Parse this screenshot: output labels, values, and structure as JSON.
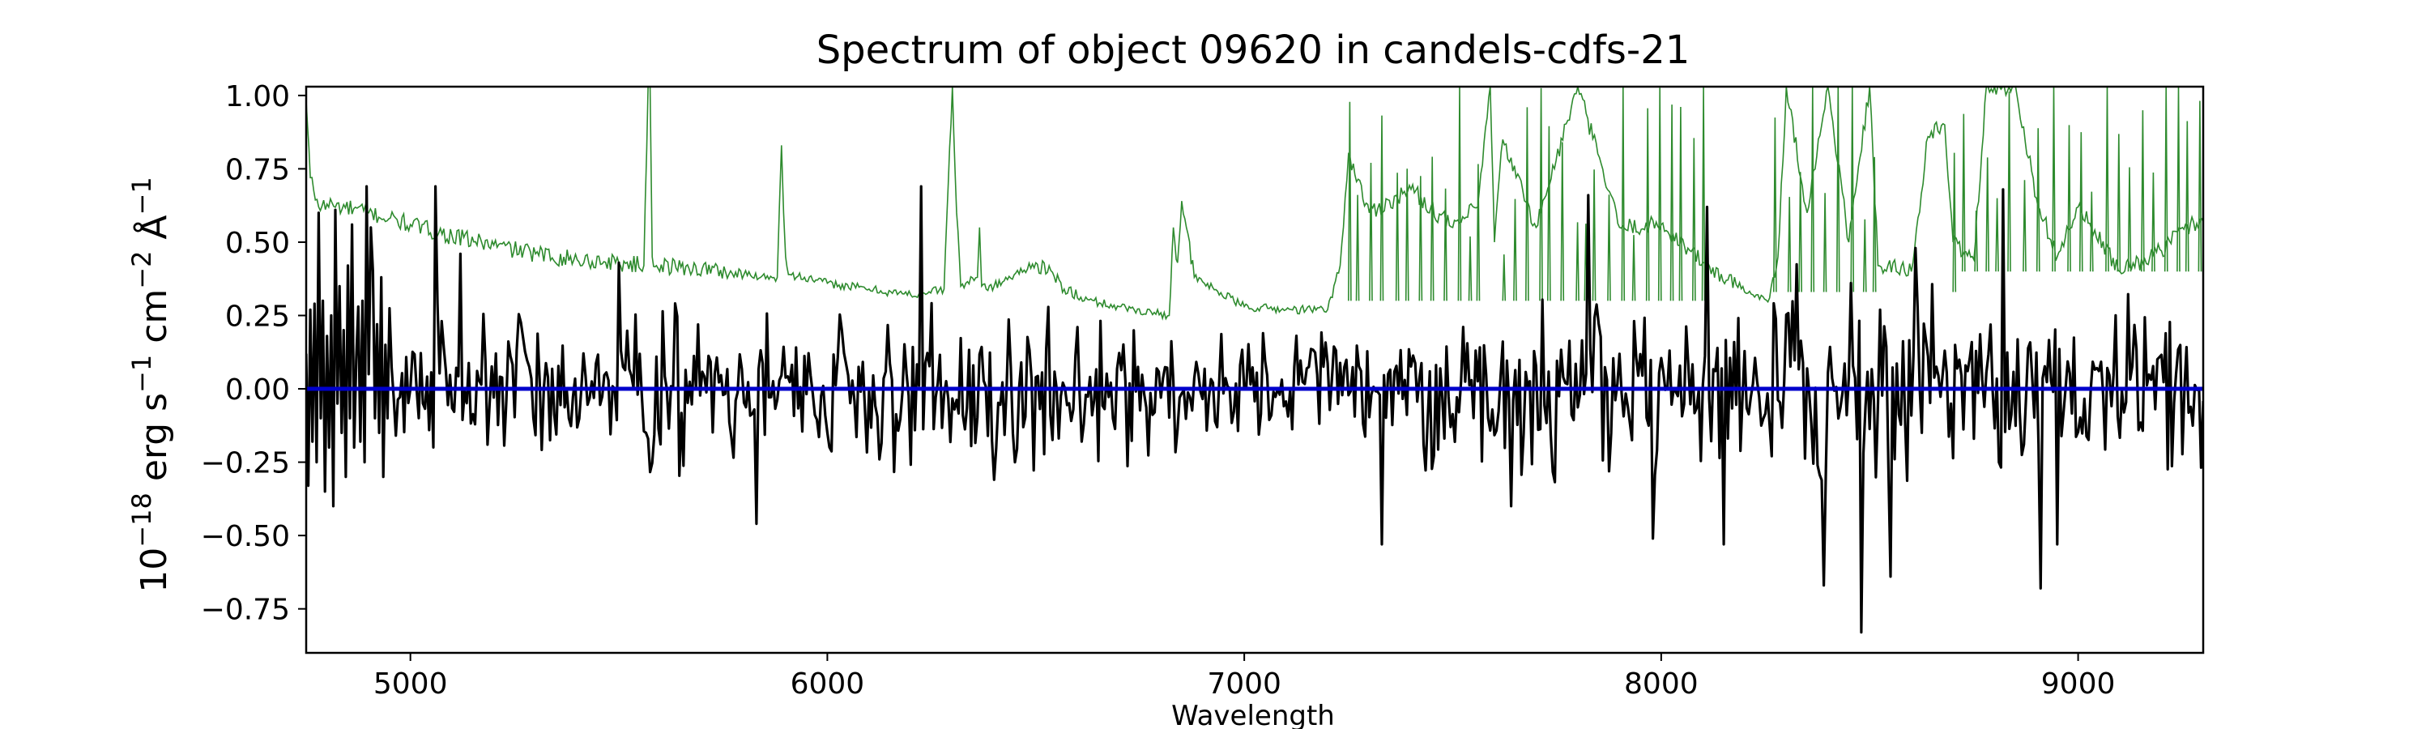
{
  "chart_data": {
    "type": "line",
    "title": "Spectrum of object 09620 in candels-cdfs-21",
    "xlabel": "Wavelength",
    "ylabel": {
      "text": "10−18 erg s−1 cm−2 Å−1",
      "parts": [
        {
          "text": "10",
          "sup": false
        },
        {
          "text": "−18",
          "sup": true
        },
        {
          "text": " erg s",
          "sup": false
        },
        {
          "text": "−1",
          "sup": true
        },
        {
          "text": " cm",
          "sup": false
        },
        {
          "text": "−2",
          "sup": true
        },
        {
          "text": " Å",
          "sup": false
        },
        {
          "text": "−1",
          "sup": true
        }
      ]
    },
    "xlim": [
      4750,
      9300
    ],
    "ylim": [
      -0.9,
      1.03
    ],
    "x_ticks": [
      5000,
      6000,
      7000,
      8000,
      9000
    ],
    "x_tick_labels": [
      "5000",
      "6000",
      "7000",
      "8000",
      "9000"
    ],
    "y_ticks": [
      -0.75,
      -0.5,
      -0.25,
      0.0,
      0.25,
      0.5,
      0.75,
      1.0
    ],
    "y_tick_labels": [
      "−0.75",
      "−0.50",
      "−0.25",
      "0.00",
      "0.25",
      "0.50",
      "0.75",
      "1.00"
    ],
    "grid": false,
    "series": [
      {
        "role": "flux",
        "color": "#000000",
        "x_start": 4750,
        "x_step": 5,
        "baseline": 0.0,
        "values": [
          0.12,
          -0.33,
          0.27,
          -0.18,
          0.29,
          -0.25,
          0.6,
          -0.1,
          0.3,
          -0.35,
          0.18,
          -0.2,
          0.25,
          -0.4,
          0.3,
          -0.05,
          0.35,
          -0.15,
          0.2,
          -0.3,
          0.42,
          -0.1,
          0.56,
          -0.2,
          0.1,
          0.28,
          -0.18,
          0.3,
          -0.25,
          0.69,
          0.05,
          -0.2,
          0.4,
          -0.1,
          0.22,
          -0.15,
          0.38,
          -0.3,
          0.15,
          -0.1
        ],
        "noise_seed": 9620,
        "noise_sigma": 0.17,
        "peaks": [
          {
            "x": 4820,
            "y": 0.61
          },
          {
            "x": 4905,
            "y": 0.55
          },
          {
            "x": 5060,
            "y": 0.69
          },
          {
            "x": 5120,
            "y": 0.46
          },
          {
            "x": 5500,
            "y": 0.43
          },
          {
            "x": 5830,
            "y": -0.46
          },
          {
            "x": 6225,
            "y": 0.69
          },
          {
            "x": 6400,
            "y": -0.31
          },
          {
            "x": 7330,
            "y": -0.53
          },
          {
            "x": 7640,
            "y": -0.4
          },
          {
            "x": 7825,
            "y": 0.66
          },
          {
            "x": 7980,
            "y": -0.51
          },
          {
            "x": 8110,
            "y": 0.62
          },
          {
            "x": 8150,
            "y": -0.53
          },
          {
            "x": 8390,
            "y": -0.67
          },
          {
            "x": 8480,
            "y": -0.83
          },
          {
            "x": 8550,
            "y": -0.64
          },
          {
            "x": 8610,
            "y": 0.48
          },
          {
            "x": 8820,
            "y": 0.68
          },
          {
            "x": 8910,
            "y": -0.68
          },
          {
            "x": 8950,
            "y": -0.53
          }
        ]
      },
      {
        "role": "error",
        "color": "#2e8b2e",
        "segments": [
          {
            "x": [
              4750,
              4760,
              4780,
              4800,
              4900,
              5000,
              5100,
              5200,
              5300,
              5400,
              5500,
              5560
            ],
            "y": [
              0.98,
              0.72,
              0.62,
              0.63,
              0.6,
              0.56,
              0.52,
              0.49,
              0.46,
              0.44,
              0.43,
              0.42
            ]
          },
          {
            "x": [
              5560,
              5570,
              5575,
              5580,
              5590
            ],
            "y": [
              0.42,
              1.03,
              1.03,
              0.45,
              0.42
            ]
          },
          {
            "x": [
              5590,
              5700,
              5800,
              5880
            ],
            "y": [
              0.42,
              0.41,
              0.39,
              0.38
            ]
          },
          {
            "x": [
              5880,
              5885,
              5890,
              5895,
              5900,
              5910
            ],
            "y": [
              0.38,
              0.62,
              0.83,
              0.6,
              0.45,
              0.39
            ]
          },
          {
            "x": [
              5910,
              6000,
              6100,
              6200,
              6280
            ],
            "y": [
              0.39,
              0.36,
              0.34,
              0.32,
              0.34
            ]
          },
          {
            "x": [
              6280,
              6290,
              6300,
              6310,
              6320
            ],
            "y": [
              0.34,
              0.7,
              1.03,
              0.6,
              0.35
            ]
          },
          {
            "x": [
              6320,
              6360,
              6365,
              6370,
              6400,
              6500,
              6600,
              6700,
              6820
            ],
            "y": [
              0.35,
              0.38,
              0.55,
              0.35,
              0.35,
              0.43,
              0.31,
              0.28,
              0.25
            ]
          },
          {
            "x": [
              6820,
              6830,
              6840,
              6850,
              6880,
              7000,
              7100,
              7200,
              7230
            ],
            "y": [
              0.25,
              0.55,
              0.43,
              0.64,
              0.38,
              0.28,
              0.27,
              0.27,
              0.42
            ]
          },
          {
            "x": [
              7230,
              7250,
              7300,
              7400,
              7500,
              7560,
              7590,
              7600,
              7620,
              7700,
              7800,
              7900,
              8000,
              8100,
              8200,
              8260
            ],
            "y": [
              0.42,
              0.8,
              0.6,
              0.68,
              0.55,
              0.62,
              1.03,
              0.5,
              0.85,
              0.55,
              1.03,
              0.55,
              0.56,
              0.43,
              0.33,
              0.31
            ]
          },
          {
            "x": [
              8260,
              8280,
              8300,
              8350,
              8400,
              8450,
              8500,
              8520,
              8600,
              8640,
              8680,
              8700,
              8750,
              8780
            ],
            "y": [
              0.31,
              0.45,
              1.03,
              0.6,
              1.03,
              0.5,
              1.03,
              0.42,
              0.4,
              0.86,
              0.9,
              0.5,
              0.44,
              1.03
            ]
          },
          {
            "x": [
              8780,
              8850,
              8900,
              8950,
              9000,
              9100,
              9200,
              9250,
              9300
            ],
            "y": [
              1.03,
              1.03,
              0.65,
              0.45,
              0.62,
              0.4,
              0.47,
              0.55,
              0.57
            ]
          }
        ],
        "ripple": 0.03
      },
      {
        "role": "zero-line",
        "color": "#0000cc",
        "x": [
          4750,
          9300
        ],
        "y": [
          0.0,
          0.0
        ]
      }
    ]
  }
}
